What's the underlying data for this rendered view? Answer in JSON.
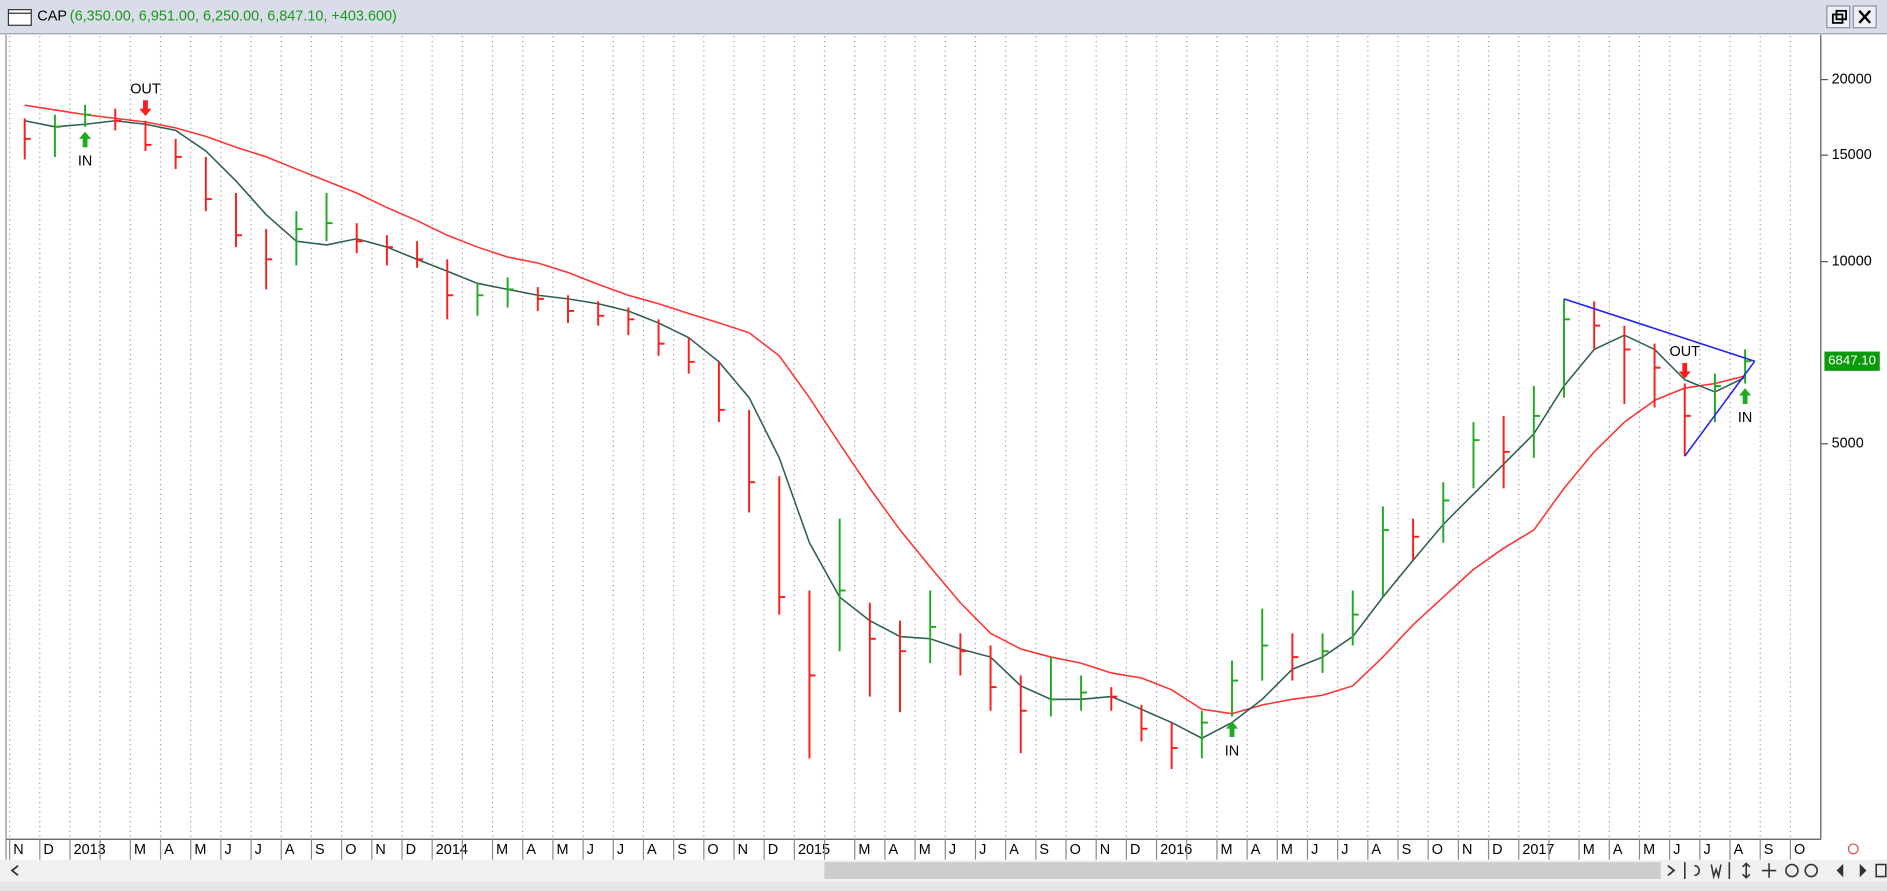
{
  "window": {
    "symbol": "CAP",
    "quote": "(6,350.00, 6,951.00, 6,250.00, 6,847.10, +403.600)"
  },
  "chart_data": {
    "type": "ohlc",
    "log_scale": true,
    "grid": true,
    "categories": [
      "N",
      "D",
      "2013",
      null,
      "M",
      "A",
      "M",
      "J",
      "J",
      "A",
      "S",
      "O",
      "N",
      "D",
      "2014",
      null,
      "M",
      "A",
      "M",
      "J",
      "J",
      "A",
      "S",
      "O",
      "N",
      "D",
      "2015",
      null,
      "M",
      "A",
      "M",
      "J",
      "J",
      "A",
      "S",
      "O",
      "N",
      "D",
      "2016",
      null,
      "M",
      "A",
      "M",
      "J",
      "J",
      "A",
      "S",
      "O",
      "N",
      "D",
      "2017",
      null,
      "M",
      "A",
      "M",
      "J",
      "J",
      "A",
      "S",
      "O"
    ],
    "high": [
      17260,
      17500,
      18160,
      17910,
      17100,
      15960,
      14900,
      12990,
      11320,
      12120,
      12990,
      11580,
      11060,
      10810,
      10090,
      9210,
      9420,
      9080,
      8800,
      8600,
      8400,
      8030,
      7490,
      6830,
      5690,
      4420,
      2860,
      3760,
      2730,
      2550,
      2860,
      2430,
      2320,
      2070,
      2220,
      2070,
      1980,
      1850,
      1730,
      1810,
      2190,
      2670,
      2430,
      2430,
      2860,
      3940,
      3760,
      4320,
      5430,
      5560,
      6230,
      8680,
      8600,
      7840,
      7320,
      6290,
      6530,
      7160,
      null,
      null
    ],
    "low": [
      14760,
      14900,
      16710,
      16480,
      15240,
      14230,
      12120,
      10570,
      9000,
      9860,
      10810,
      10330,
      9860,
      9770,
      8030,
      8140,
      8400,
      8290,
      7920,
      7840,
      7560,
      6990,
      6530,
      5430,
      3850,
      2610,
      1510,
      2270,
      1910,
      1800,
      2170,
      2070,
      1810,
      1540,
      1770,
      1810,
      1810,
      1610,
      1450,
      1510,
      1770,
      2030,
      2030,
      2090,
      2320,
      2790,
      3210,
      3430,
      4220,
      4220,
      4740,
      5960,
      7160,
      5820,
      5740,
      4770,
      5430,
      6290,
      null,
      null
    ],
    "close": [
      15960,
      16710,
      17500,
      17100,
      15600,
      14900,
      12690,
      11060,
      10090,
      11320,
      11580,
      10810,
      10570,
      10090,
      8800,
      8800,
      9000,
      8680,
      8290,
      8140,
      8030,
      7320,
      6830,
      5690,
      4320,
      2790,
      2070,
      2860,
      2380,
      2270,
      2490,
      2270,
      1980,
      1810,
      1890,
      1940,
      1910,
      1690,
      1570,
      1730,
      2030,
      2320,
      2220,
      2270,
      2610,
      3600,
      3510,
      4030,
      5070,
      4850,
      5560,
      8030,
      7840,
      7160,
      6680,
      5560,
      6230,
      6847.1,
      null,
      null
    ],
    "up_color": "#1faa1f",
    "down_color": "#ff1a1a",
    "ma": [
      {
        "color": "#ff3333",
        "values": [
          18150,
          17820,
          17500,
          17260,
          17020,
          16640,
          16110,
          15460,
          14900,
          14230,
          13600,
          12990,
          12290,
          11690,
          11060,
          10570,
          10180,
          9950,
          9600,
          9170,
          8800,
          8520,
          8210,
          7920,
          7630,
          6990,
          5960,
          5000,
          4220,
          3600,
          3130,
          2730,
          2430,
          2290,
          2220,
          2170,
          2090,
          2050,
          1960,
          1820,
          1790,
          1850,
          1890,
          1920,
          1990,
          2220,
          2510,
          2790,
          3100,
          3360,
          3600,
          4220,
          4850,
          5430,
          5900,
          6180,
          6290,
          6470,
          null,
          null
        ]
      },
      {
        "color": "#2f5f52",
        "values": [
          17100,
          16710,
          16870,
          17100,
          16870,
          16480,
          15240,
          13600,
          11960,
          10810,
          10660,
          10910,
          10570,
          10090,
          9640,
          9210,
          9000,
          8800,
          8680,
          8520,
          8290,
          7920,
          7490,
          6830,
          5960,
          4740,
          3430,
          2790,
          2550,
          2400,
          2380,
          2290,
          2220,
          1990,
          1890,
          1890,
          1910,
          1820,
          1730,
          1630,
          1730,
          1890,
          2120,
          2220,
          2400,
          2790,
          3210,
          3680,
          4130,
          4630,
          5190,
          6230,
          7160,
          7560,
          7160,
          6380,
          6090,
          6440,
          null,
          null
        ]
      }
    ],
    "signals": [
      null,
      null,
      {
        "label": "IN",
        "direction": "up"
      },
      null,
      {
        "label": "OUT",
        "direction": "down"
      },
      null,
      null,
      null,
      null,
      null,
      null,
      null,
      null,
      null,
      null,
      null,
      null,
      null,
      null,
      null,
      null,
      null,
      null,
      null,
      null,
      null,
      null,
      null,
      null,
      null,
      null,
      null,
      null,
      null,
      null,
      null,
      null,
      null,
      null,
      null,
      {
        "label": "IN",
        "direction": "up"
      },
      null,
      null,
      null,
      null,
      null,
      null,
      null,
      null,
      null,
      null,
      null,
      null,
      null,
      null,
      {
        "label": "OUT",
        "direction": "down"
      },
      null,
      {
        "label": "IN",
        "direction": "up"
      },
      null,
      null
    ],
    "trendline_color": "#2020ee",
    "ylim": [
      1120,
      23600
    ],
    "yticks": [
      20000,
      15000,
      10000,
      5000
    ],
    "last_label": {
      "value": 6847.1,
      "label": "6847.10"
    },
    "last_label_color": "#0a9a0a"
  }
}
